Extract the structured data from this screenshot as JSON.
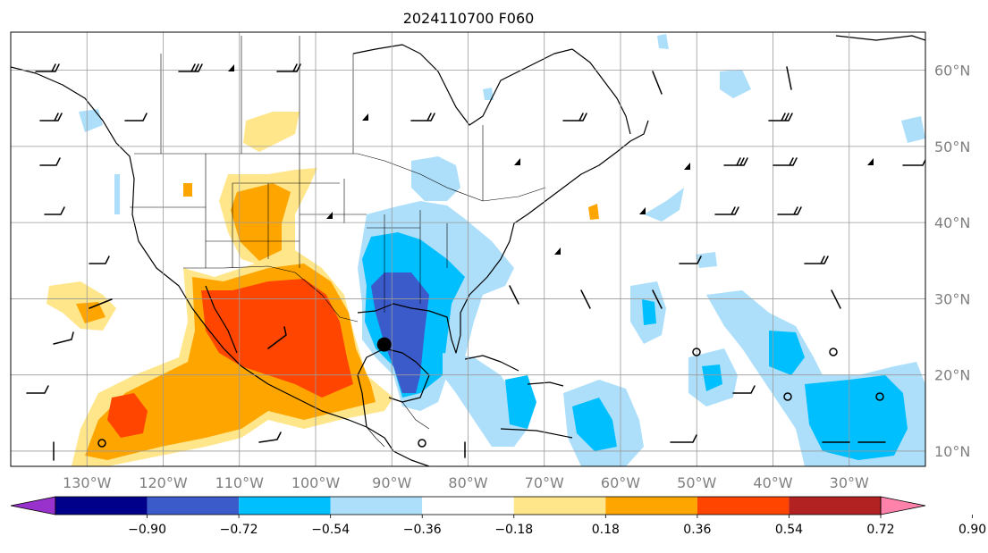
{
  "title": "2024110700 F060",
  "map": {
    "lat_ticks": [
      "60°N",
      "50°N",
      "40°N",
      "30°N",
      "20°N",
      "10°N"
    ],
    "lon_ticks": [
      "130°W",
      "120°W",
      "110°W",
      "100°W",
      "90°W",
      "80°W",
      "70°W",
      "60°W",
      "50°W",
      "40°W",
      "30°W"
    ],
    "extent": {
      "lon_min": -140,
      "lon_max": -20,
      "lat_min": 8,
      "lat_max": 65
    },
    "storm_marker": {
      "lon": -91,
      "lat": 24
    },
    "grid": true
  },
  "colorbar": {
    "orientation": "horizontal",
    "extend": "both",
    "levels": [
      "−0.90",
      "−0.72",
      "−0.54",
      "−0.36",
      "−0.18",
      "0.18",
      "0.36",
      "0.54",
      "0.72",
      "0.90"
    ],
    "colors": [
      "#9932CC",
      "#00008B",
      "#3B5BCB",
      "#00BFFF",
      "#ADDFFA",
      "#FFFFFF",
      "#FFE68A",
      "#FFA500",
      "#FF4500",
      "#B22222",
      "#FF82AB"
    ]
  }
}
